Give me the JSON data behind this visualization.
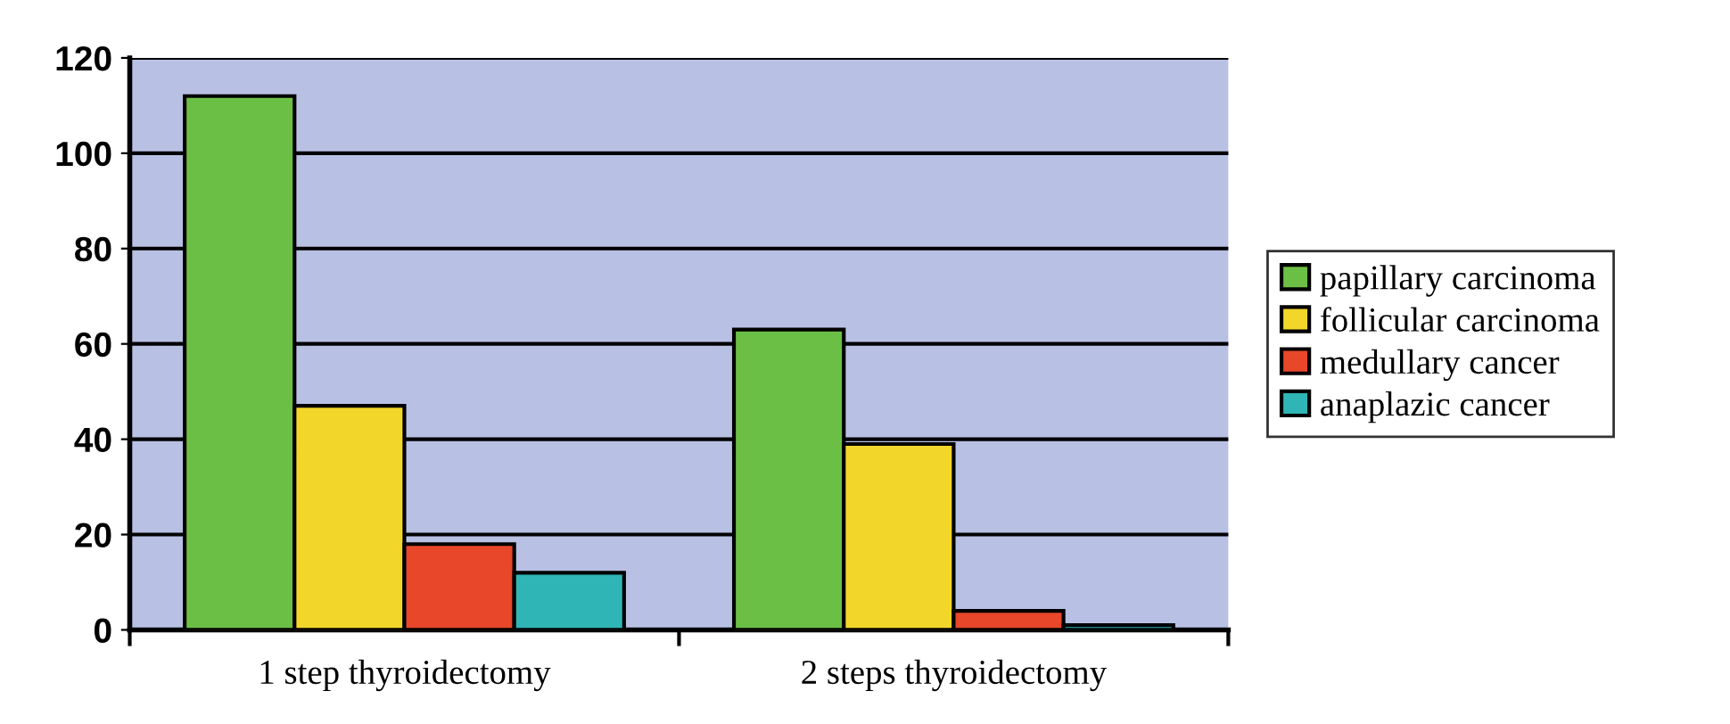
{
  "chart_data": {
    "type": "bar",
    "categories": [
      "1 step thyroidectomy",
      "2 steps thyroidectomy"
    ],
    "series": [
      {
        "name": "papillary carcinoma",
        "color": "#6cbf45",
        "values": [
          112,
          63
        ]
      },
      {
        "name": "follicular carcinoma",
        "color": "#f2d62a",
        "values": [
          47,
          39
        ]
      },
      {
        "name": "medullary cancer",
        "color": "#e8472a",
        "values": [
          18,
          4
        ]
      },
      {
        "name": "anaplazic cancer",
        "color": "#2fb5b5",
        "values": [
          12,
          1
        ]
      }
    ],
    "ylim": [
      0,
      120
    ],
    "yticks": [
      0,
      20,
      40,
      60,
      80,
      100,
      120
    ],
    "grid": "y",
    "legend": "right"
  }
}
